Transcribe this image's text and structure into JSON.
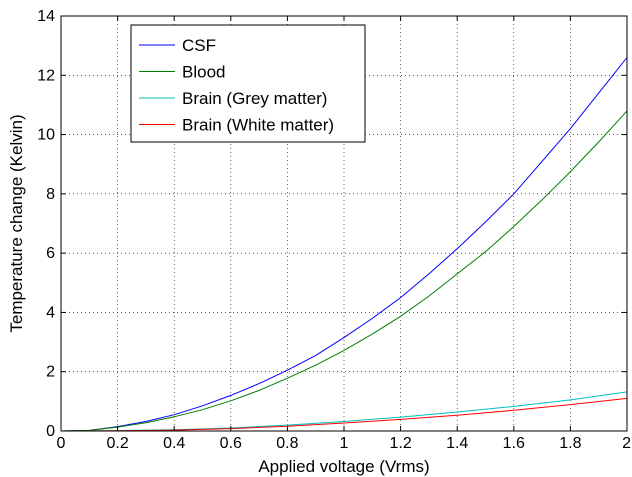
{
  "chart_data": {
    "type": "line",
    "xlabel": "Applied voltage (Vrms)",
    "ylabel": "Temperature change (Kelvin)",
    "xlim": [
      0,
      2
    ],
    "ylim": [
      0,
      14
    ],
    "xticks": [
      0,
      0.2,
      0.4,
      0.6,
      0.8,
      1,
      1.2,
      1.4,
      1.6,
      1.8,
      2
    ],
    "xtick_labels": [
      "0",
      "0.2",
      "0.4",
      "0.6",
      "0.8",
      "1",
      "1.2",
      "1.4",
      "1.6",
      "1.8",
      "2"
    ],
    "yticks": [
      0,
      2,
      4,
      6,
      8,
      10,
      12,
      14
    ],
    "ytick_labels": [
      "0",
      "2",
      "4",
      "6",
      "8",
      "10",
      "12",
      "14"
    ],
    "grid": true,
    "legend_position": "top-left",
    "series": [
      {
        "name": "CSF",
        "color": "#0000ff",
        "x": [
          0,
          0.1,
          0.2,
          0.3,
          0.4,
          0.5,
          0.6,
          0.7,
          0.8,
          0.9,
          1.0,
          1.1,
          1.2,
          1.3,
          1.4,
          1.5,
          1.6,
          1.7,
          1.8,
          1.9,
          2.0
        ],
        "y": [
          0.0,
          0.02,
          0.15,
          0.32,
          0.55,
          0.85,
          1.2,
          1.6,
          2.05,
          2.55,
          3.15,
          3.8,
          4.5,
          5.3,
          6.15,
          7.05,
          8.0,
          9.1,
          10.2,
          11.4,
          12.6
        ]
      },
      {
        "name": "Blood",
        "color": "#008000",
        "x": [
          0,
          0.1,
          0.2,
          0.3,
          0.4,
          0.5,
          0.6,
          0.7,
          0.8,
          0.9,
          1.0,
          1.1,
          1.2,
          1.3,
          1.4,
          1.5,
          1.6,
          1.7,
          1.8,
          1.9,
          2.0
        ],
        "y": [
          0.0,
          0.02,
          0.13,
          0.28,
          0.48,
          0.72,
          1.02,
          1.37,
          1.78,
          2.22,
          2.72,
          3.27,
          3.87,
          4.55,
          5.3,
          6.05,
          6.9,
          7.8,
          8.75,
          9.75,
          10.8
        ]
      },
      {
        "name": "Brain (Grey matter)",
        "color": "#00bfbf",
        "x": [
          0,
          0.2,
          0.4,
          0.6,
          0.8,
          1.0,
          1.2,
          1.4,
          1.6,
          1.8,
          2.0
        ],
        "y": [
          0.0,
          0.01,
          0.04,
          0.1,
          0.2,
          0.32,
          0.47,
          0.64,
          0.83,
          1.05,
          1.32
        ]
      },
      {
        "name": "Brain (White matter)",
        "color": "#ff0000",
        "x": [
          0,
          0.2,
          0.4,
          0.6,
          0.8,
          1.0,
          1.2,
          1.4,
          1.6,
          1.8,
          2.0
        ],
        "y": [
          0.0,
          0.01,
          0.03,
          0.08,
          0.16,
          0.27,
          0.39,
          0.53,
          0.7,
          0.89,
          1.1
        ]
      }
    ]
  }
}
